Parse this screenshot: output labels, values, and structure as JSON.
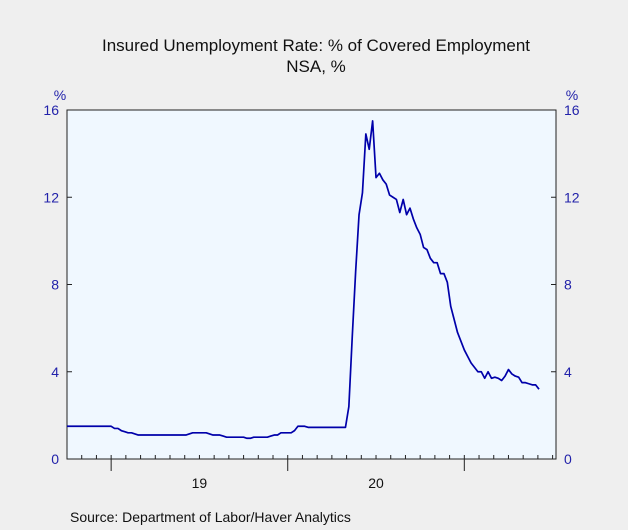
{
  "chart_data": {
    "type": "line",
    "title": "Insured Unemployment Rate: % of Covered Employment",
    "subtitle": "NSA, %",
    "ylabel_left": "%",
    "ylabel_right": "%",
    "ylim": [
      0,
      16
    ],
    "yticks": [
      0,
      4,
      8,
      12,
      16
    ],
    "x_tick_labels": [
      {
        "label": "19",
        "week": 39
      },
      {
        "label": "20",
        "week": 91
      }
    ],
    "grid": false,
    "legend": "none",
    "line_color": "#0000aa",
    "plot_background": "#f0f8ff",
    "series": [
      {
        "values": [
          1.5,
          1.5,
          1.5,
          1.5,
          1.5,
          1.5,
          1.5,
          1.5,
          1.5,
          1.5,
          1.5,
          1.5,
          1.5,
          1.5,
          1.4,
          1.4,
          1.3,
          1.25,
          1.2,
          1.2,
          1.15,
          1.1,
          1.1,
          1.1,
          1.1,
          1.1,
          1.1,
          1.1,
          1.1,
          1.1,
          1.1,
          1.1,
          1.1,
          1.1,
          1.1,
          1.1,
          1.15,
          1.2,
          1.2,
          1.2,
          1.2,
          1.2,
          1.15,
          1.1,
          1.1,
          1.1,
          1.05,
          1.0,
          1.0,
          1.0,
          1.0,
          1.0,
          1.0,
          0.95,
          0.95,
          1.0,
          1.0,
          1.0,
          1.0,
          1.0,
          1.05,
          1.1,
          1.1,
          1.2,
          1.2,
          1.2,
          1.2,
          1.3,
          1.5,
          1.5,
          1.5,
          1.45,
          1.45,
          1.45,
          1.45,
          1.45,
          1.45,
          1.45,
          1.45,
          1.45,
          1.45,
          1.45,
          1.45,
          2.4,
          5.6,
          8.6,
          11.2,
          12.2,
          14.9,
          14.2,
          15.5,
          12.9,
          13.1,
          12.8,
          12.6,
          12.1,
          12.0,
          11.9,
          11.3,
          11.9,
          11.2,
          11.5,
          11.0,
          10.6,
          10.3,
          9.7,
          9.6,
          9.2,
          9.0,
          9.0,
          8.5,
          8.5,
          8.1,
          7.0,
          6.4,
          5.8,
          5.4,
          5.0,
          4.7,
          4.4,
          4.2,
          4.0,
          4.0,
          3.7,
          4.0,
          3.7,
          3.75,
          3.7,
          3.6,
          3.8,
          4.1,
          3.9,
          3.8,
          3.75,
          3.5,
          3.5,
          3.45,
          3.4,
          3.4,
          3.2
        ]
      }
    ]
  },
  "source_text": "Source:  Department of Labor/Haver Analytics"
}
